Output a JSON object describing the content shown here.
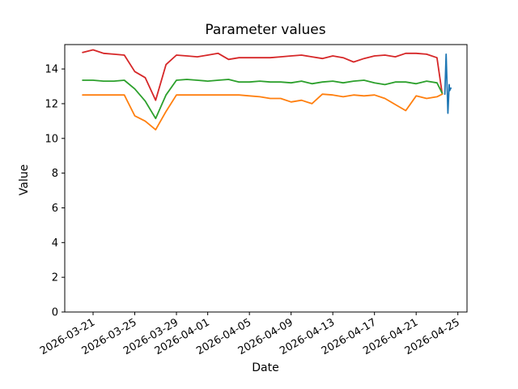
{
  "chart_data": {
    "type": "line",
    "title": "Parameter values",
    "xlabel": "Date",
    "ylabel": "Value",
    "grid": false,
    "legend": "none",
    "ylim": [
      0,
      15.4
    ],
    "xlim": [
      "2026-03-18",
      "2026-04-26"
    ],
    "y_ticks": [
      0,
      2,
      4,
      6,
      8,
      10,
      12,
      14
    ],
    "x_tick_labels": [
      "2026-03-21",
      "2026-03-25",
      "2026-03-29",
      "2026-04-01",
      "2026-04-05",
      "2026-04-09",
      "2026-04-13",
      "2026-04-17",
      "2026-04-21",
      "2026-04-25"
    ],
    "x_shared": [
      "2026-03-20",
      "2026-03-21",
      "2026-03-22",
      "2026-03-23",
      "2026-03-24",
      "2026-03-25",
      "2026-03-26",
      "2026-03-27",
      "2026-03-28",
      "2026-03-29",
      "2026-03-30",
      "2026-03-31",
      "2026-04-01",
      "2026-04-02",
      "2026-04-03",
      "2026-04-04",
      "2026-04-05",
      "2026-04-06",
      "2026-04-07",
      "2026-04-08",
      "2026-04-09",
      "2026-04-10",
      "2026-04-11",
      "2026-04-12",
      "2026-04-13",
      "2026-04-14",
      "2026-04-15",
      "2026-04-16",
      "2026-04-17",
      "2026-04-18",
      "2026-04-19",
      "2026-04-20",
      "2026-04-21",
      "2026-04-22",
      "2026-04-23",
      "2026-04-23T12:00"
    ],
    "series": [
      {
        "name": "red",
        "color": "#d62728",
        "values": [
          14.95,
          15.1,
          14.9,
          14.85,
          14.8,
          13.85,
          13.5,
          12.2,
          14.25,
          14.8,
          14.75,
          14.7,
          14.8,
          14.9,
          14.55,
          14.65,
          14.65,
          14.65,
          14.65,
          14.7,
          14.75,
          14.8,
          14.7,
          14.6,
          14.75,
          14.65,
          14.4,
          14.6,
          14.75,
          14.8,
          14.7,
          14.9,
          14.9,
          14.85,
          14.65,
          12.55
        ]
      },
      {
        "name": "green",
        "color": "#2ca02c",
        "values": [
          13.35,
          13.35,
          13.3,
          13.3,
          13.35,
          12.85,
          12.15,
          11.15,
          12.5,
          13.35,
          13.4,
          13.35,
          13.3,
          13.35,
          13.4,
          13.25,
          13.25,
          13.3,
          13.25,
          13.25,
          13.2,
          13.3,
          13.15,
          13.25,
          13.3,
          13.2,
          13.3,
          13.35,
          13.2,
          13.1,
          13.25,
          13.25,
          13.15,
          13.3,
          13.2,
          12.6
        ]
      },
      {
        "name": "orange",
        "color": "#ff7f0e",
        "values": [
          12.5,
          12.5,
          12.5,
          12.5,
          12.5,
          11.3,
          11.0,
          10.5,
          11.55,
          12.5,
          12.5,
          12.5,
          12.5,
          12.5,
          12.5,
          12.5,
          12.45,
          12.4,
          12.3,
          12.3,
          12.1,
          12.2,
          12.0,
          12.55,
          12.5,
          12.4,
          12.5,
          12.45,
          12.5,
          12.3,
          11.95,
          11.6,
          12.45,
          12.3,
          12.4,
          12.55
        ]
      },
      {
        "name": "blue",
        "color": "#1f77b4",
        "x": [
          "2026-04-23T18:00",
          "2026-04-23T21:00",
          "2026-04-24T01:00",
          "2026-04-24T04:00",
          "2026-04-24T05:00",
          "2026-04-24T08:00"
        ],
        "values": [
          12.55,
          14.85,
          11.45,
          13.1,
          12.75,
          12.9
        ]
      }
    ]
  }
}
